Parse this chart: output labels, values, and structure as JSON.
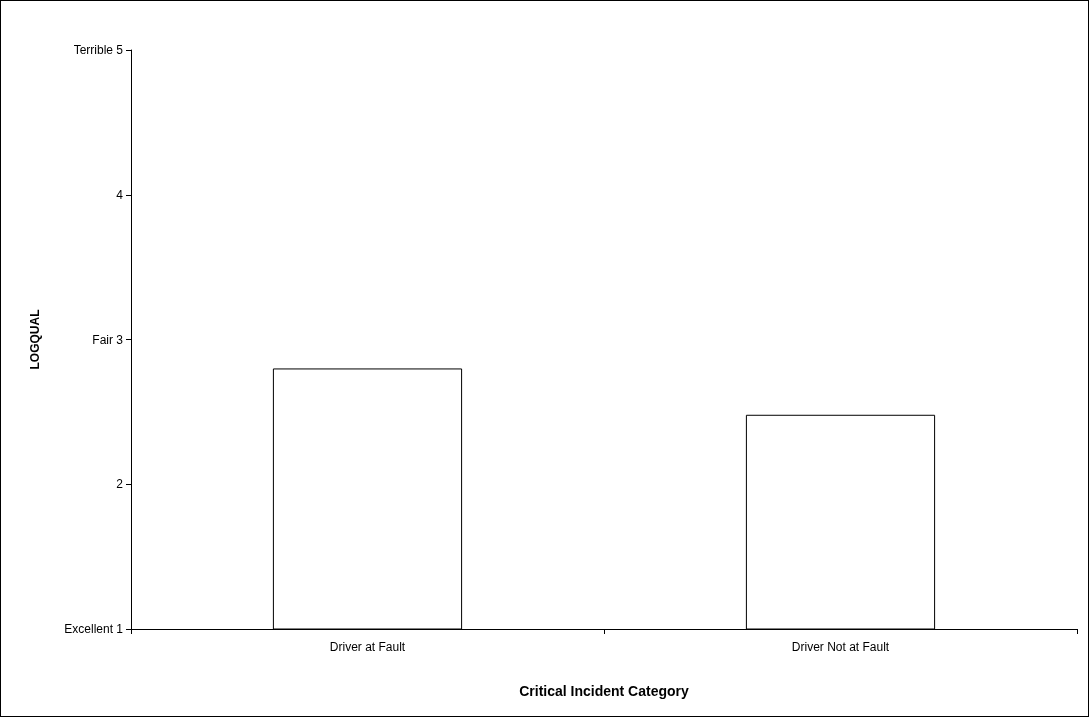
{
  "chart_data": {
    "type": "bar",
    "xlabel": "Critical Incident Category",
    "ylabel": "LOGQUAL",
    "categories": [
      "Driver at Fault",
      "Driver Not at Fault"
    ],
    "values": [
      2.8,
      2.48
    ],
    "color": "#ffffff",
    "ylim": [
      1,
      5
    ],
    "yticks": [
      {
        "value": 1,
        "label": "Excellent 1"
      },
      2,
      {
        "value": 3,
        "label": "Fair 3"
      },
      4,
      {
        "value": 5,
        "label": "Terrible 5"
      }
    ],
    "grid": false
  }
}
